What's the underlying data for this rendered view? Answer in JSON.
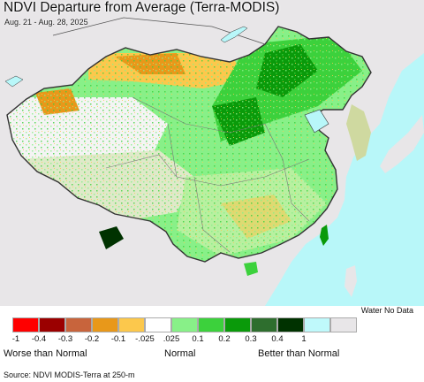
{
  "map": {
    "title": "NDVI Departure from Average (Terra-MODIS)",
    "subtitle": "Aug. 21 - Aug. 28, 2025",
    "region": "China and surrounding area",
    "colors": {
      "ocean": "#b8f7f9",
      "land_neutral": "#e8e6e8",
      "border": "#555555",
      "coast": "#333333"
    }
  },
  "legend": {
    "water_label": "Water No Data",
    "swatches": [
      {
        "color": "#ff0000"
      },
      {
        "color": "#9b0000"
      },
      {
        "color": "#c8643c"
      },
      {
        "color": "#e8981a"
      },
      {
        "color": "#fcc84c"
      },
      {
        "color": "#ffffff"
      },
      {
        "color": "#88f088"
      },
      {
        "color": "#3cd13c"
      },
      {
        "color": "#0a9a0a"
      },
      {
        "color": "#2e6e2e"
      },
      {
        "color": "#003200"
      },
      {
        "color": "#bff9fb"
      },
      {
        "color": "#e8e6e8"
      }
    ],
    "ticks": [
      "-1",
      "-0.4",
      "-0.3",
      "-0.2",
      "-0.1",
      "-.025",
      ".025",
      "0.1",
      "0.2",
      "0.3",
      "0.4",
      "1"
    ],
    "worse_label": "Worse than Normal",
    "normal_label": "Normal",
    "better_label": "Better than Normal"
  },
  "source": "Source: NDVI MODIS-Terra at 250-m"
}
